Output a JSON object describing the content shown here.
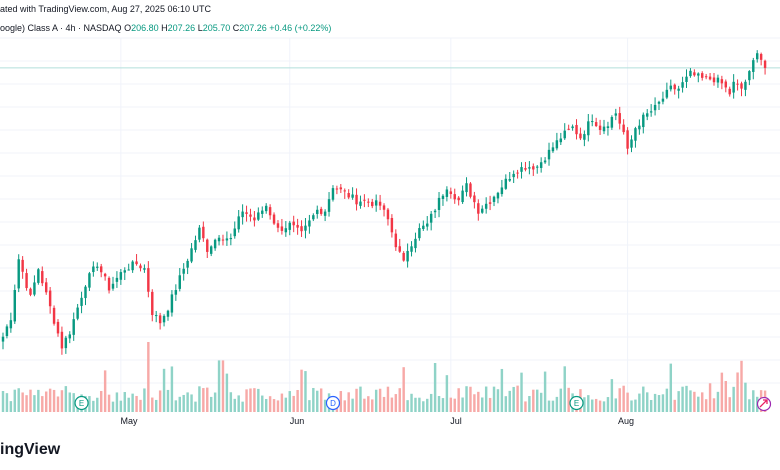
{
  "header": {
    "published": "ated with TradingView.com, Aug 27, 2025 06:10 UTC",
    "symbol": "oogle) Class A · 4h · NASDAQ",
    "o_label": "O",
    "o": "206.80",
    "h_label": "H",
    "h": "207.26",
    "l_label": "L",
    "l": "205.70",
    "c_label": "C",
    "c": "207.26",
    "change": "+0.46 (+0.22%)"
  },
  "brand": "ingView",
  "colors": {
    "up": "#089981",
    "down": "#f23645",
    "vol_up": "#8fd3c7",
    "vol_down": "#f7a9a7",
    "grid": "#f0f3fa",
    "last_line": "#b2dfdb"
  },
  "markers": [
    {
      "type": "earnings",
      "label": "E",
      "index": 20,
      "icon": "earnings-icon"
    },
    {
      "type": "dividend",
      "label": "D",
      "index": 84,
      "icon": "dividend-icon"
    },
    {
      "type": "earnings",
      "label": "E",
      "index": 146,
      "icon": "earnings-icon"
    }
  ],
  "chart_data": {
    "type": "candlestick",
    "title": "Alphabet Inc (Google) Class A · 4h · NASDAQ",
    "x_ticks": [
      {
        "label": "May",
        "index": 30
      },
      {
        "label": "Jun",
        "index": 73
      },
      {
        "label": "Jul",
        "index": 114
      },
      {
        "label": "Aug",
        "index": 159
      }
    ],
    "ylim": [
      140,
      213
    ],
    "last_price": 207.26,
    "n_candles": 195,
    "anchors": [
      [
        0,
        152
      ],
      [
        2,
        156
      ],
      [
        4,
        168
      ],
      [
        7,
        160
      ],
      [
        9,
        166
      ],
      [
        12,
        158
      ],
      [
        15,
        150
      ],
      [
        17,
        153
      ],
      [
        21,
        163
      ],
      [
        24,
        167
      ],
      [
        27,
        162
      ],
      [
        31,
        166
      ],
      [
        34,
        167
      ],
      [
        36,
        166
      ],
      [
        38,
        157
      ],
      [
        40,
        155
      ],
      [
        42,
        158
      ],
      [
        46,
        166
      ],
      [
        50,
        174
      ],
      [
        52,
        170
      ],
      [
        55,
        173
      ],
      [
        58,
        172
      ],
      [
        61,
        178
      ],
      [
        64,
        176
      ],
      [
        67,
        179
      ],
      [
        70,
        174
      ],
      [
        73,
        175
      ],
      [
        76,
        173
      ],
      [
        80,
        178
      ],
      [
        82,
        178
      ],
      [
        84,
        183
      ],
      [
        86,
        182
      ],
      [
        88,
        181
      ],
      [
        90,
        180
      ],
      [
        92,
        180
      ],
      [
        96,
        179
      ],
      [
        98,
        176
      ],
      [
        100,
        171
      ],
      [
        102,
        167
      ],
      [
        103,
        170
      ],
      [
        106,
        174
      ],
      [
        108,
        175
      ],
      [
        111,
        180
      ],
      [
        113,
        183
      ],
      [
        116,
        180
      ],
      [
        118,
        183
      ],
      [
        121,
        178
      ],
      [
        124,
        180
      ],
      [
        127,
        183
      ],
      [
        130,
        186
      ],
      [
        133,
        187
      ],
      [
        136,
        187
      ],
      [
        139,
        190
      ],
      [
        142,
        193
      ],
      [
        145,
        195
      ],
      [
        147,
        193
      ],
      [
        150,
        197
      ],
      [
        152,
        195
      ],
      [
        154,
        196
      ],
      [
        156,
        198
      ],
      [
        158,
        194
      ],
      [
        159,
        190
      ],
      [
        161,
        195
      ],
      [
        163,
        197
      ],
      [
        166,
        199
      ],
      [
        168,
        201
      ],
      [
        170,
        203
      ],
      [
        172,
        203
      ],
      [
        175,
        206
      ],
      [
        178,
        205
      ],
      [
        181,
        205
      ],
      [
        183,
        204
      ],
      [
        185,
        202
      ],
      [
        186,
        204
      ],
      [
        188,
        203
      ],
      [
        190,
        206
      ],
      [
        192,
        211
      ],
      [
        194,
        207.26
      ]
    ],
    "volume_range": [
      0,
      95
    ]
  }
}
